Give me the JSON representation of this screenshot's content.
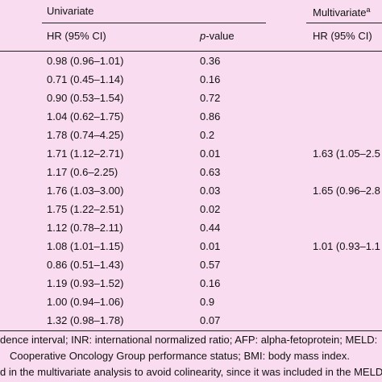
{
  "table": {
    "group_headers": {
      "univariate": "Univariate",
      "multivariate": "Multivariate",
      "multivariate_note": "a"
    },
    "columns": [
      "HR (95% CI)",
      "p-value",
      "HR (95% CI)"
    ],
    "rows": [
      [
        "0.98 (0.96–1.01)",
        "0.36",
        null
      ],
      [
        "0.71 (0.45–1.14)",
        "0.16",
        null
      ],
      [
        "0.90 (0.53–1.54)",
        "0.72",
        null
      ],
      [
        "1.04 (0.62–1.75)",
        "0.86",
        null
      ],
      [
        "1.78 (0.74–4.25)",
        "0.2",
        null
      ],
      [
        "1.71 (1.12–2.71)",
        "0.01",
        "1.63 (1.05–2.5"
      ],
      [
        "1.17 (0.6–2.25)",
        "0.63",
        null
      ],
      [
        "1.76 (1.03–3.00)",
        "0.03",
        "1.65 (0.96–2.8"
      ],
      [
        "1.75 (1.22–2.51)",
        "0.02",
        null
      ],
      [
        "1.12 (0.78–2.11)",
        "0.44",
        null
      ],
      [
        "1.08 (1.01–1.15)",
        "0.01",
        "1.01 (0.93–1.1"
      ],
      [
        "0.86 (0.51–1.43)",
        "0.57",
        null
      ],
      [
        "1.19 (0.93–1.52)",
        "0.16",
        null
      ],
      [
        "1.00 (0.94–1.06)",
        "0.9",
        null
      ],
      [
        "1.32 (0.98–1.78)",
        "0.07",
        null
      ]
    ],
    "footnotes": [
      "dence interval; INR: international normalized ratio; AFP: alpha-fetoprotein; MELD:",
      "Cooperative Oncology Group performance status; BMI: body mass index.",
      "d in the multivariate analysis to avoid colinearity, since it was included in the MELD"
    ]
  }
}
